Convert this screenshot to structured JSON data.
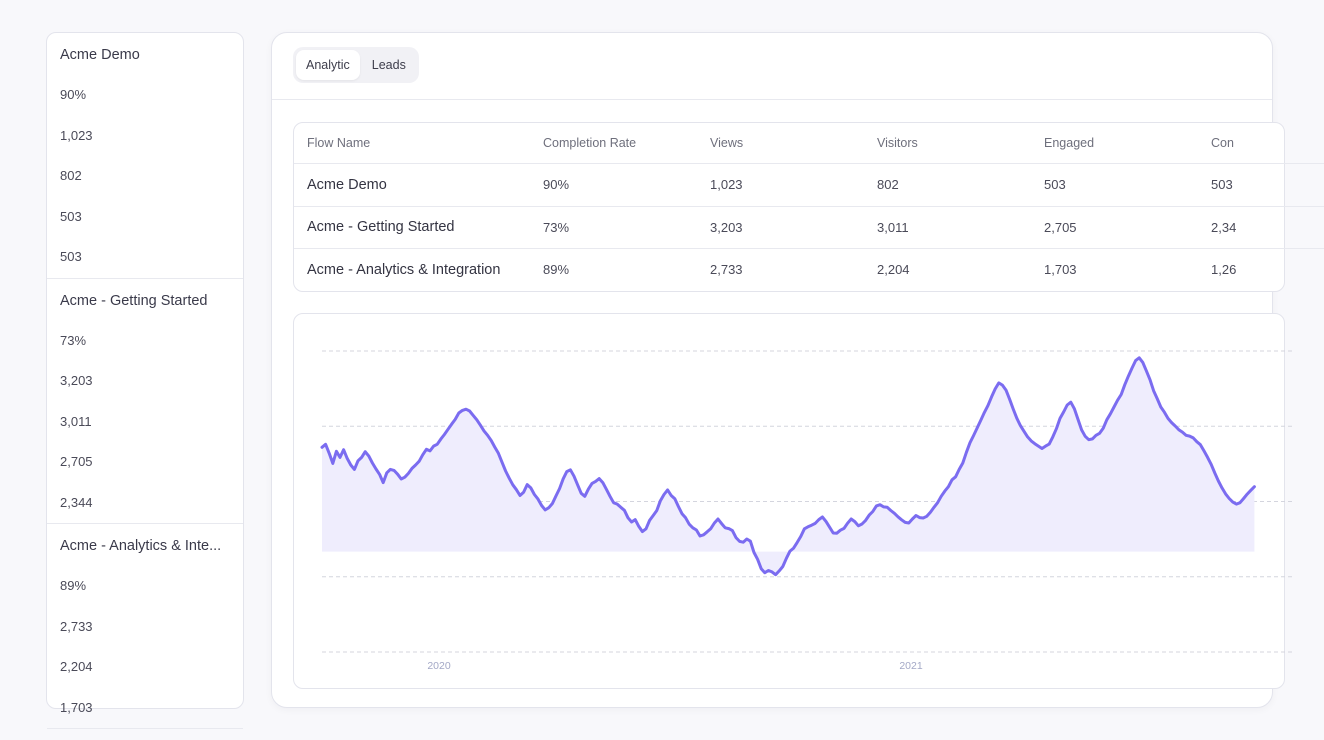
{
  "sidebar": {
    "groups": [
      {
        "title": "Acme Demo",
        "values": [
          "90%",
          "1,023",
          "802",
          "503",
          "503"
        ]
      },
      {
        "title": "Acme - Getting Started",
        "values": [
          "73%",
          "3,203",
          "3,011",
          "2,705",
          "2,344"
        ]
      },
      {
        "title": "Acme - Analytics & Inte...",
        "values": [
          "89%",
          "2,733",
          "2,204",
          "1,703"
        ]
      }
    ]
  },
  "tabs": [
    {
      "label": "Analytic",
      "active": true
    },
    {
      "label": "Leads",
      "active": false
    }
  ],
  "table": {
    "headers": [
      "Flow Name",
      "Completion Rate",
      "Views",
      "Visitors",
      "Engaged",
      "Con"
    ],
    "rows": [
      [
        "Acme Demo",
        "90%",
        "1,023",
        "802",
        "503",
        "503"
      ],
      [
        "Acme - Getting Started",
        "73%",
        "3,203",
        "3,011",
        "2,705",
        "2,34"
      ],
      [
        "Acme - Analytics & Integration",
        "89%",
        "2,733",
        "2,204",
        "1,703",
        "1,26"
      ]
    ]
  },
  "colors": {
    "line": "#7b6cf0",
    "area": "#efedfd",
    "grid": "#d4d5de",
    "tick": "#a3a8c6"
  },
  "chart_data": {
    "type": "line",
    "x_tick_labels": [
      "2020",
      "2021"
    ],
    "gridlines": 5,
    "series": [
      {
        "values": [
          52.0,
          53.5,
          49.0,
          44.0,
          50.0,
          47.0,
          50.8,
          46.5,
          43.2,
          41.0,
          45.3,
          47.0,
          49.8,
          47.6,
          44.2,
          41.2,
          38.5,
          34.4,
          39.3,
          41.0,
          40.5,
          38.6,
          36.2,
          37.1,
          39.0,
          41.5,
          43.2,
          45.1,
          48.3,
          51.0,
          50.2,
          52.6,
          53.5,
          56.1,
          58.4,
          61.0,
          63.5,
          65.9,
          69.1,
          70.4,
          71.0,
          70.1,
          67.9,
          65.7,
          63.0,
          60.2,
          58.0,
          55.4,
          52.1,
          49.0,
          44.6,
          40.2,
          36.6,
          33.3,
          30.9,
          28.0,
          29.6,
          33.4,
          31.8,
          28.5,
          26.2,
          23.0,
          20.8,
          21.9,
          24.0,
          27.8,
          31.5,
          36.3,
          39.9,
          40.8,
          37.6,
          33.3,
          29.1,
          27.6,
          31.2,
          34.0,
          35.0,
          36.4,
          34.4,
          31.1,
          27.6,
          24.4,
          23.7,
          22.1,
          20.6,
          16.9,
          14.8,
          16.0,
          12.6,
          10.0,
          11.4,
          15.6,
          18.0,
          20.5,
          25.4,
          28.5,
          30.8,
          28.0,
          26.4,
          22.5,
          18.9,
          16.9,
          13.7,
          11.9,
          10.8,
          7.8,
          8.4,
          9.9,
          11.5,
          14.3,
          16.3,
          14.0,
          11.9,
          11.5,
          10.5,
          7.0,
          5.1,
          4.7,
          6.3,
          5.2,
          -0.4,
          -3.8,
          -8.5,
          -10.5,
          -9.4,
          -10.1,
          -11.5,
          -9.6,
          -7.4,
          -3.3,
          0.3,
          1.8,
          4.6,
          7.6,
          11.4,
          12.4,
          13.2,
          14.1,
          16.0,
          17.3,
          15.1,
          12.2,
          9.3,
          9.2,
          10.7,
          11.6,
          14.2,
          16.3,
          15.0,
          12.9,
          13.8,
          15.6,
          18.2,
          20.0,
          22.8,
          23.4,
          22.3,
          22.1,
          20.5,
          19.1,
          17.4,
          15.9,
          14.6,
          14.3,
          16.3,
          18.0,
          17.0,
          16.8,
          17.6,
          19.6,
          22.1,
          24.4,
          27.6,
          30.2,
          32.4,
          35.8,
          37.3,
          41.0,
          44.2,
          49.5,
          54.3,
          57.9,
          61.7,
          65.5,
          69.4,
          72.9,
          77.2,
          81.1,
          84.1,
          83.0,
          80.5,
          76.0,
          71.1,
          66.5,
          62.8,
          60.0,
          57.2,
          55.2,
          53.8,
          52.6,
          51.4,
          52.6,
          53.6,
          57.2,
          61.3,
          66.4,
          69.6,
          73.1,
          74.5,
          71.2,
          65.9,
          60.7,
          57.5,
          55.8,
          56.2,
          58.0,
          59.0,
          61.5,
          65.7,
          68.7,
          72.1,
          75.5,
          78.3,
          83.2,
          87.5,
          91.5,
          95.2,
          96.6,
          94.3,
          90.1,
          85.7,
          80.2,
          76.3,
          72.1,
          69.5,
          66.4,
          64.3,
          62.6,
          60.8,
          59.6,
          58.0,
          57.6,
          56.7,
          54.8,
          53.3,
          50.2,
          47.0,
          43.5,
          39.2,
          35.2,
          31.8,
          28.8,
          26.5,
          24.7,
          23.7,
          24.4,
          26.5,
          28.7,
          30.6,
          32.4
        ]
      }
    ]
  }
}
